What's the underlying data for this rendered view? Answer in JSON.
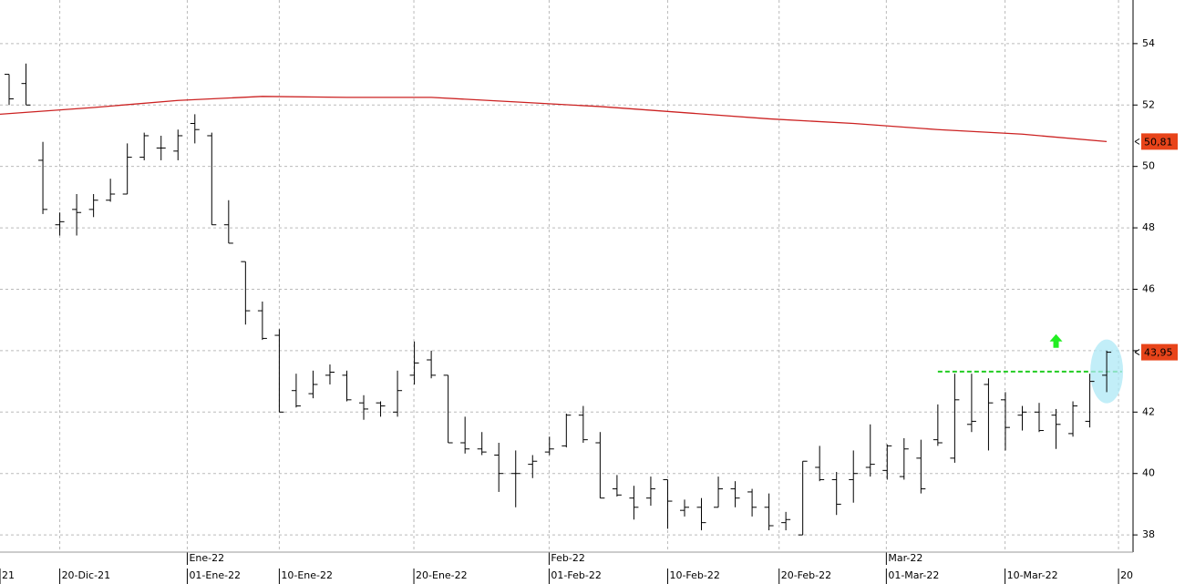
{
  "chart_data": {
    "type": "ohlc",
    "color": "#000000",
    "open": [
      53.0,
      52.7,
      50.2,
      48.1,
      48.6,
      48.6,
      48.9,
      49.1,
      50.3,
      50.6,
      50.5,
      51.4,
      51.0,
      48.1,
      46.9,
      45.3,
      44.5,
      42.7,
      42.6,
      43.2,
      43.2,
      42.3,
      42.3,
      42.0,
      43.2,
      43.7,
      43.2,
      41.0,
      40.8,
      40.6,
      40.0,
      40.3,
      40.7,
      40.9,
      41.9,
      41.0,
      39.5,
      39.2,
      39.2,
      39.8,
      38.8,
      38.9,
      38.9,
      39.5,
      39.4,
      38.9,
      38.4,
      38.0,
      40.2,
      39.8,
      39.8,
      40.2,
      40.1,
      39.9,
      40.5,
      41.1,
      40.5,
      41.6,
      42.9,
      42.4,
      41.9,
      42.0,
      41.9,
      41.3,
      41.7,
      43.2
    ],
    "high": [
      53.0,
      53.35,
      50.8,
      48.5,
      49.1,
      49.1,
      49.6,
      50.75,
      51.1,
      51.0,
      51.2,
      51.7,
      51.1,
      48.9,
      46.9,
      45.6,
      44.7,
      43.25,
      43.35,
      43.55,
      43.35,
      42.55,
      42.35,
      43.35,
      44.3,
      44.0,
      43.2,
      41.85,
      41.35,
      41.0,
      40.75,
      40.6,
      41.2,
      41.95,
      42.2,
      41.35,
      39.95,
      39.6,
      39.9,
      39.8,
      39.15,
      39.2,
      39.9,
      39.75,
      39.5,
      39.35,
      38.75,
      40.4,
      40.9,
      40.05,
      40.75,
      41.6,
      40.95,
      41.15,
      41.1,
      42.25,
      43.25,
      43.25,
      43.1,
      42.65,
      42.2,
      42.3,
      42.1,
      42.35,
      43.25,
      44.0
    ],
    "low": [
      52.0,
      52.0,
      48.45,
      47.75,
      47.75,
      48.35,
      48.85,
      49.1,
      50.2,
      50.2,
      50.2,
      50.75,
      48.1,
      47.5,
      44.85,
      44.35,
      42.0,
      42.15,
      42.45,
      42.9,
      42.35,
      41.75,
      41.85,
      41.85,
      42.9,
      43.1,
      41.0,
      40.65,
      40.6,
      39.4,
      38.9,
      39.85,
      40.6,
      40.85,
      41.0,
      39.2,
      39.25,
      38.5,
      38.95,
      38.2,
      38.6,
      38.15,
      38.9,
      38.9,
      38.6,
      38.15,
      38.15,
      38.0,
      39.75,
      38.65,
      39.05,
      39.9,
      39.8,
      39.8,
      39.35,
      40.9,
      40.35,
      41.35,
      40.75,
      40.75,
      41.4,
      41.35,
      40.8,
      41.2,
      41.5,
      42.65
    ],
    "close": [
      52.2,
      52.0,
      48.6,
      48.2,
      48.5,
      48.9,
      49.1,
      50.3,
      51.0,
      50.6,
      51.0,
      51.2,
      48.1,
      47.5,
      45.3,
      44.4,
      42.0,
      42.2,
      42.9,
      43.3,
      42.4,
      42.1,
      42.2,
      42.7,
      43.6,
      43.2,
      41.0,
      40.8,
      40.7,
      40.0,
      40.0,
      40.4,
      40.8,
      41.9,
      41.1,
      39.2,
      39.3,
      38.9,
      39.5,
      39.1,
      38.9,
      38.4,
      39.5,
      39.2,
      38.9,
      38.3,
      38.5,
      40.4,
      39.8,
      39.0,
      40.0,
      40.3,
      40.9,
      40.8,
      39.5,
      41.0,
      42.4,
      41.7,
      42.3,
      41.5,
      42.0,
      41.4,
      41.6,
      42.2,
      43.0,
      43.95
    ],
    "moving_average": {
      "color": "#cc2222",
      "x": [
        -0.54,
        5,
        10,
        15,
        20,
        25,
        30,
        35,
        40,
        45,
        50,
        55,
        60,
        65
      ],
      "values": [
        51.7,
        51.92,
        52.15,
        52.28,
        52.25,
        52.25,
        52.1,
        51.95,
        51.75,
        51.55,
        51.4,
        51.2,
        51.05,
        50.81
      ]
    },
    "last_labels": [
      {
        "value": 50.81,
        "label": "50,81",
        "color": "#e8441a"
      },
      {
        "value": 43.95,
        "label": "43,95",
        "color": "#e8441a"
      }
    ],
    "level_line": {
      "value": 43.32,
      "x": [
        55,
        65.9
      ],
      "color": "#22cc22"
    },
    "signal_arrow": {
      "x": 62,
      "y": 44.3,
      "color": "#22ee22"
    },
    "xlim": [
      -0.54,
      66.56
    ],
    "ylim": [
      37.44,
      55.42
    ],
    "yticks": [
      38,
      40,
      42,
      44,
      46,
      48,
      50,
      52,
      54
    ],
    "xticks": [
      {
        "value": -0.54,
        "label": "21"
      },
      {
        "value": 3,
        "label": "20-Dic-21"
      },
      {
        "value": 10.55,
        "label": "01-Ene-22"
      },
      {
        "value": 16,
        "label": "10-Ene-22"
      },
      {
        "value": 23.97,
        "label": "20-Ene-22"
      },
      {
        "value": 31.98,
        "label": "01-Feb-22"
      },
      {
        "value": 39,
        "label": "10-Feb-22"
      },
      {
        "value": 45.6,
        "label": "20-Feb-22"
      },
      {
        "value": 51.95,
        "label": "01-Mar-22"
      },
      {
        "value": 58.98,
        "label": "10-Mar-22"
      },
      {
        "value": 65.7,
        "label": "20"
      }
    ],
    "month_ticks": [
      {
        "value": 10.55,
        "label": "Ene-22"
      },
      {
        "value": 31.98,
        "label": "Feb-22"
      },
      {
        "value": 51.95,
        "label": "Mar-22"
      }
    ],
    "grid": true
  }
}
